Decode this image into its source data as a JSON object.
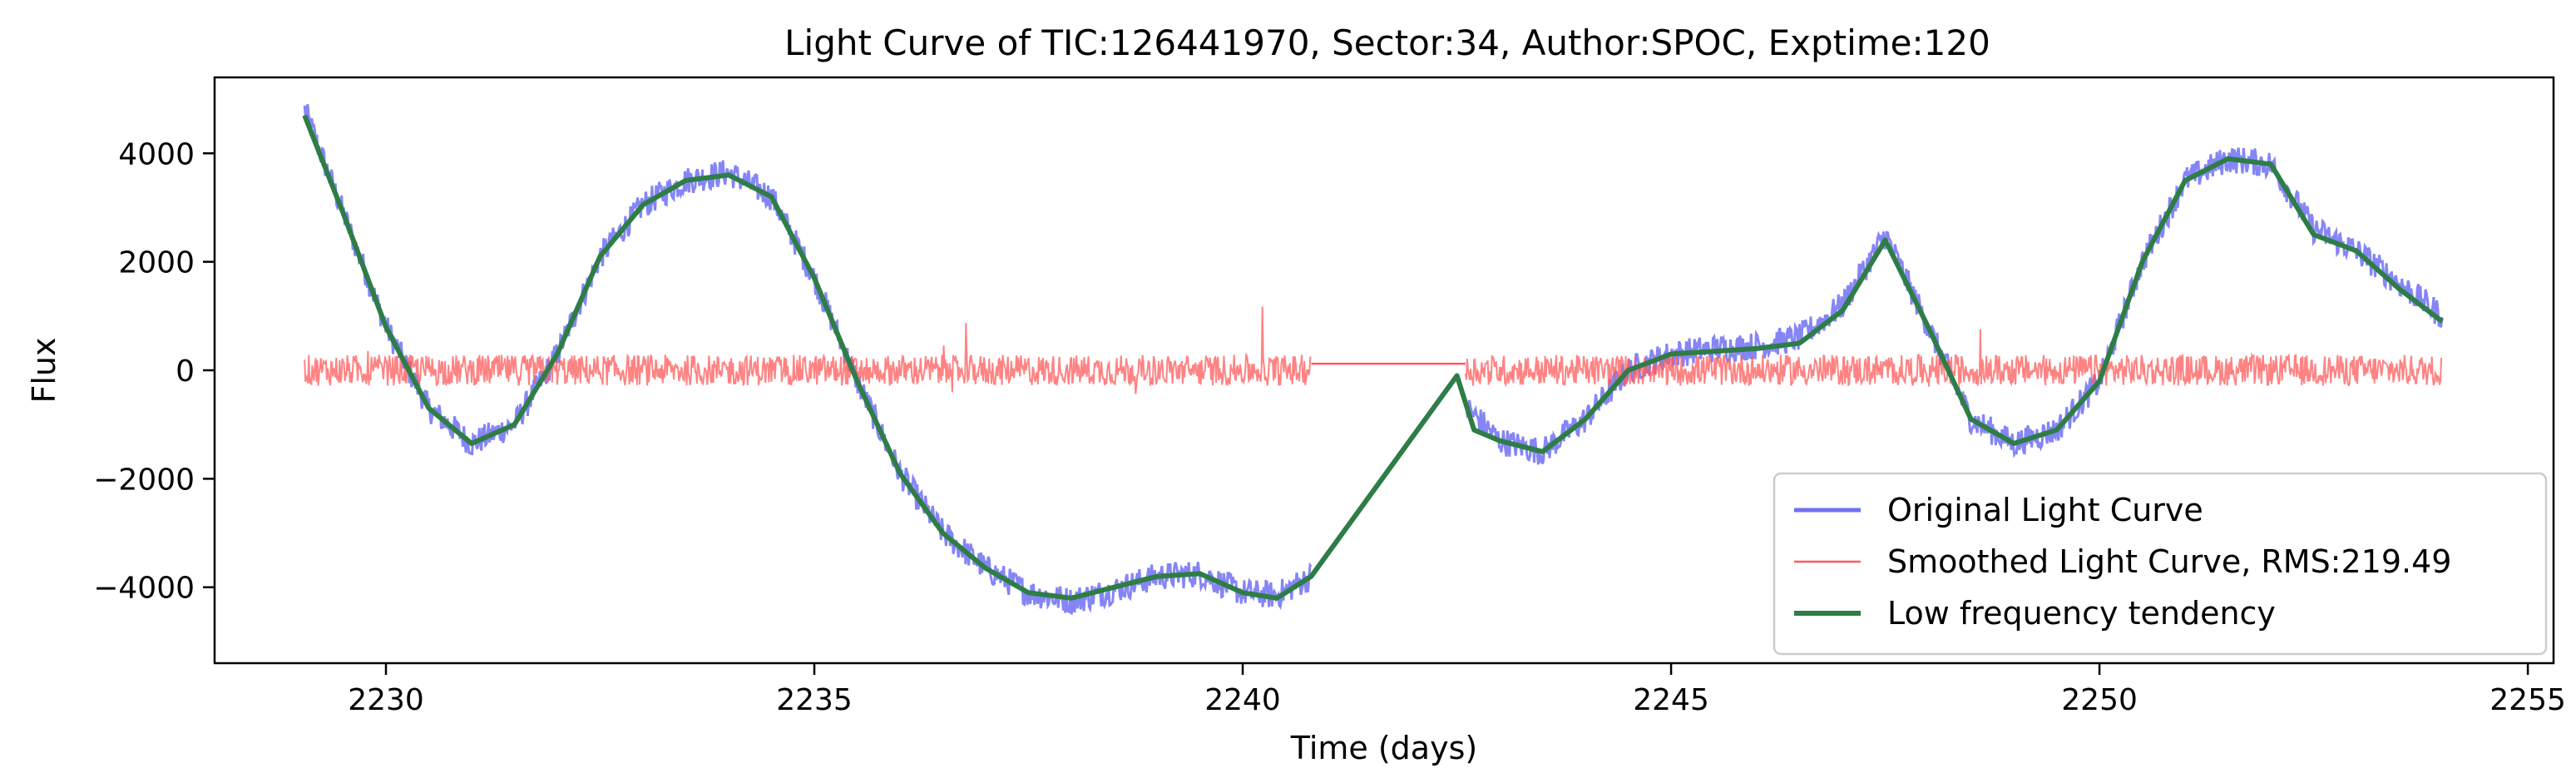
{
  "chart_data": {
    "type": "line",
    "title": "Light Curve of TIC:126441970, Sector:34, Author:SPOC, Exptime:120",
    "xlabel": "Time (days)",
    "ylabel": "Flux",
    "xlim": [
      2228,
      2255.3
    ],
    "ylim": [
      -5400,
      5400
    ],
    "xticks": [
      2230,
      2235,
      2240,
      2245,
      2250,
      2255
    ],
    "xtick_labels": [
      "2230",
      "2235",
      "2240",
      "2245",
      "2250",
      "2255"
    ],
    "yticks": [
      4000,
      2000,
      0,
      -2000,
      -4000
    ],
    "ytick_labels": [
      "4000",
      "2000",
      "0",
      "−2000",
      "−4000"
    ],
    "grid": false,
    "legend_position": "lower-right",
    "series": [
      {
        "name": "Original Light Curve",
        "color": "#7070f5",
        "style": "band",
        "x": [
          2229.05,
          2229.5,
          2230.0,
          2230.5,
          2231.0,
          2231.5,
          2232.0,
          2232.5,
          2233.0,
          2233.5,
          2234.0,
          2234.5,
          2235.0,
          2235.5,
          2236.0,
          2236.5,
          2237.0,
          2237.5,
          2238.0,
          2238.5,
          2239.0,
          2239.5,
          2240.0,
          2240.4,
          2240.8,
          2242.5,
          2243.0,
          2243.5,
          2244.0,
          2244.5,
          2245.0,
          2245.5,
          2246.0,
          2246.5,
          2247.0,
          2247.5,
          2248.0,
          2248.5,
          2249.0,
          2249.5,
          2250.0,
          2250.5,
          2251.0,
          2251.5,
          2252.0,
          2252.5,
          2253.0,
          2253.5,
          2254.0
        ],
        "y": [
          4800,
          2900,
          800,
          -700,
          -1350,
          -1000,
          300,
          2100,
          3050,
          3500,
          3650,
          3200,
          1700,
          -200,
          -1900,
          -3000,
          -3650,
          -4100,
          -4250,
          -4050,
          -3800,
          -3750,
          -4100,
          -4150,
          -3800,
          -500,
          -1300,
          -1500,
          -900,
          0,
          300,
          400,
          450,
          600,
          1200,
          2500,
          800,
          -900,
          -1350,
          -1100,
          -200,
          2000,
          3500,
          3900,
          3800,
          2600,
          2200,
          1600,
          1000
        ],
        "band_halfwidth": 260
      },
      {
        "name": "Smoothed Light Curve, RMS:219.49",
        "color": "#ff5a5a",
        "style": "noise",
        "x_start": 2229.05,
        "x_end": 2254.0,
        "gap": [
          2240.8,
          2242.6
        ],
        "level": 0,
        "rms": 219.49
      },
      {
        "name": "Low frequency tendency",
        "color": "#2e7d46",
        "style": "line",
        "x": [
          2229.05,
          2229.5,
          2230.0,
          2230.5,
          2231.0,
          2231.5,
          2232.0,
          2232.5,
          2233.0,
          2233.5,
          2234.0,
          2234.5,
          2235.0,
          2235.5,
          2236.0,
          2236.5,
          2237.0,
          2237.5,
          2238.0,
          2238.5,
          2239.0,
          2239.5,
          2240.0,
          2240.4,
          2240.8,
          2242.5,
          2242.7,
          2243.0,
          2243.5,
          2244.0,
          2244.5,
          2245.0,
          2245.5,
          2246.0,
          2246.5,
          2247.0,
          2247.5,
          2248.0,
          2248.5,
          2249.0,
          2249.5,
          2250.0,
          2250.5,
          2251.0,
          2251.5,
          2252.0,
          2252.5,
          2253.0,
          2253.5,
          2254.0
        ],
        "y": [
          4700,
          2900,
          800,
          -700,
          -1350,
          -1000,
          300,
          2100,
          3050,
          3500,
          3600,
          3200,
          1700,
          -200,
          -1900,
          -3000,
          -3650,
          -4100,
          -4200,
          -4000,
          -3800,
          -3750,
          -4100,
          -4200,
          -3800,
          -100,
          -1100,
          -1300,
          -1500,
          -900,
          0,
          300,
          350,
          400,
          500,
          1100,
          2400,
          800,
          -900,
          -1350,
          -1100,
          -200,
          2000,
          3500,
          3900,
          3800,
          2500,
          2200,
          1500,
          900
        ]
      }
    ]
  }
}
